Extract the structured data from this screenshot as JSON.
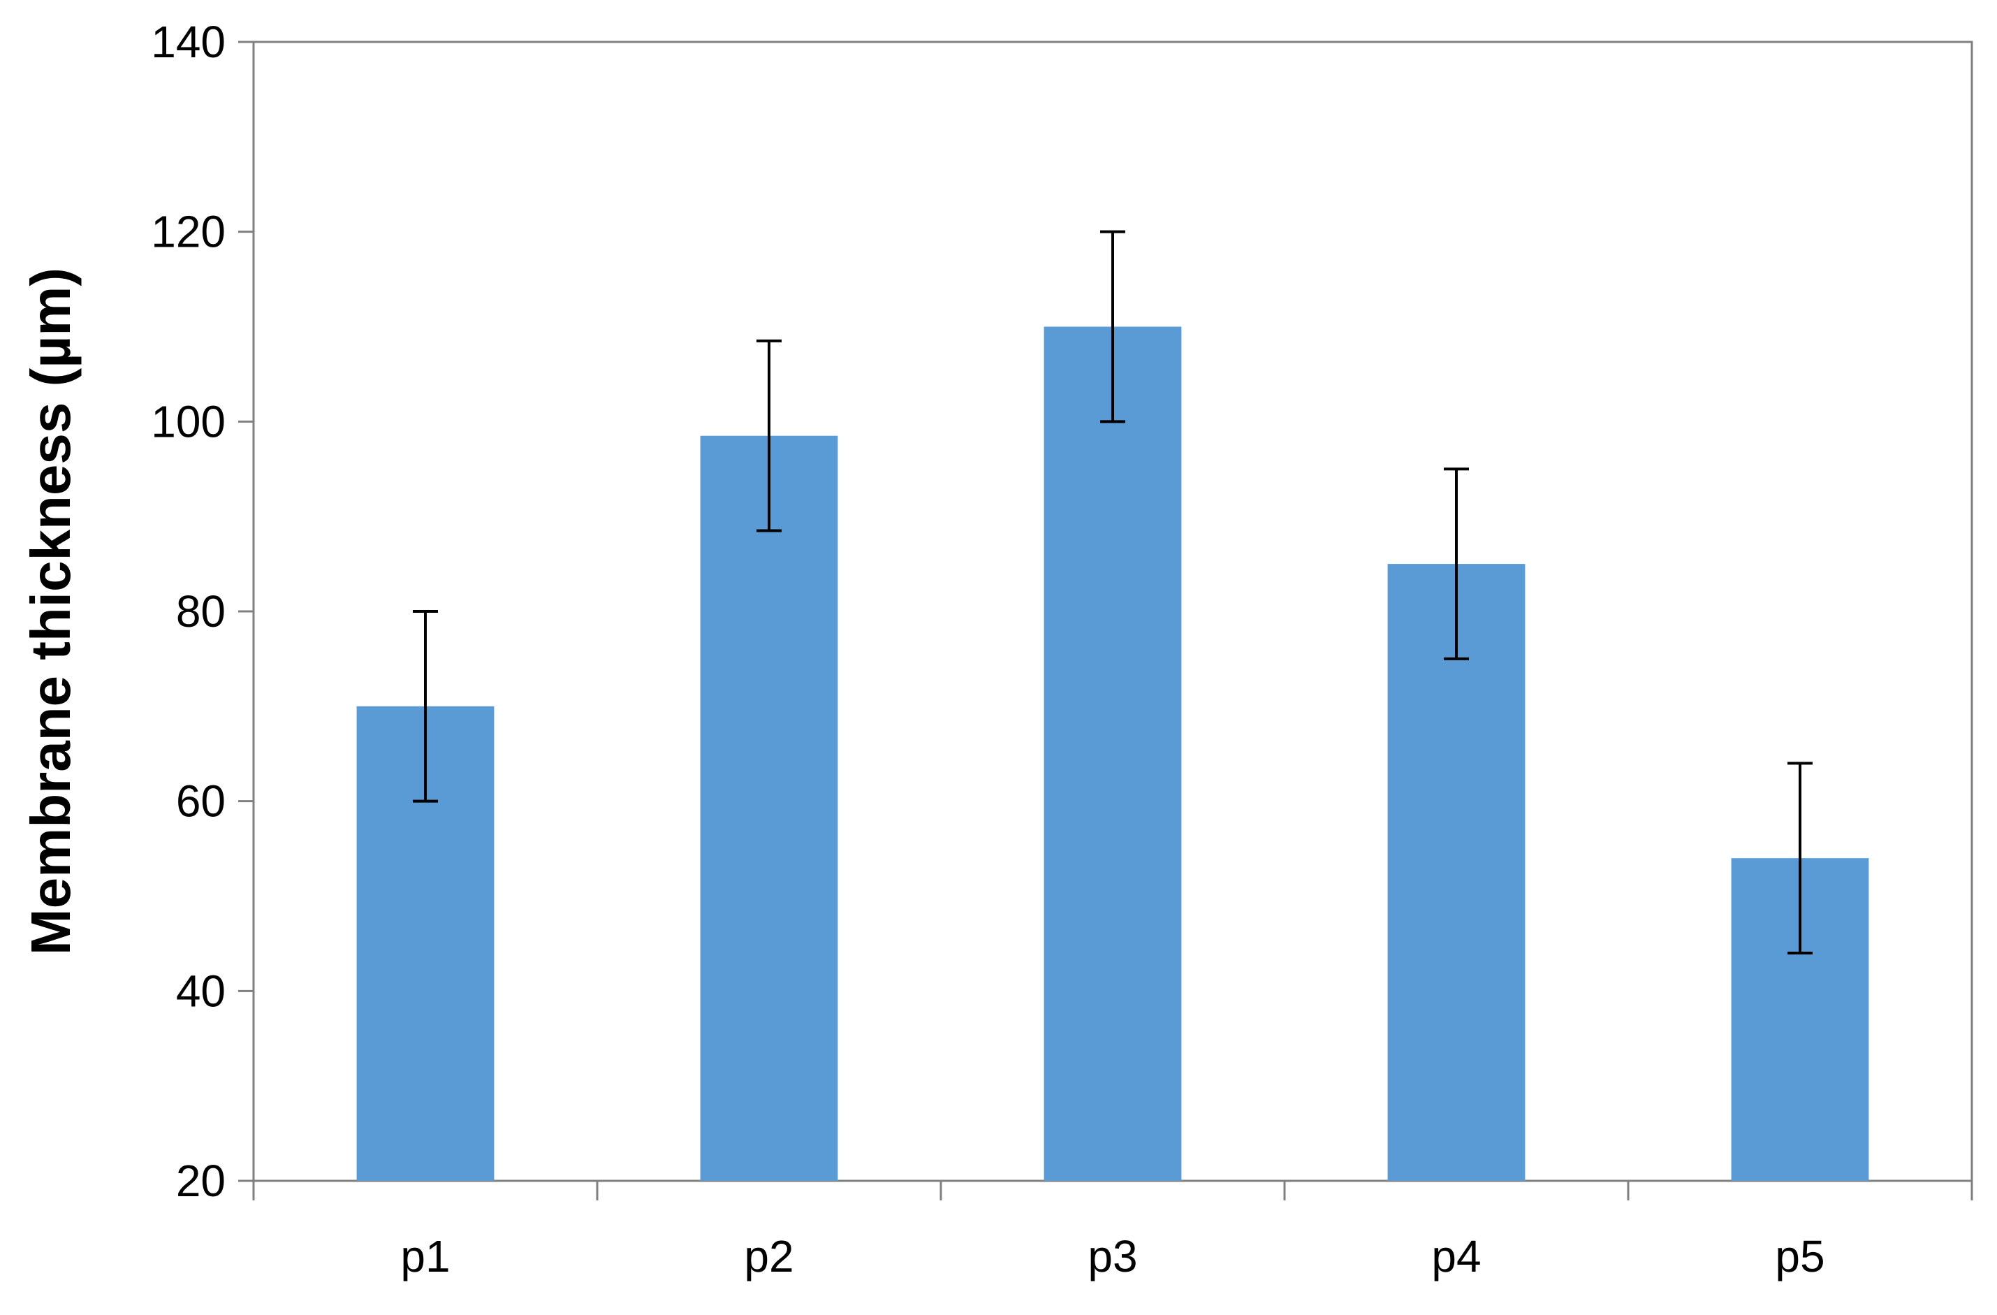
{
  "chart_data": {
    "type": "bar",
    "title": "",
    "xlabel": "",
    "ylabel": "Membrane thickness (µm)",
    "categories": [
      "p1",
      "p2",
      "p3",
      "p4",
      "p5"
    ],
    "series": [
      {
        "values": [
          70,
          98.5,
          110,
          85,
          54
        ],
        "error": [
          10,
          10,
          10,
          10,
          10
        ],
        "color": "#5B9BD5"
      }
    ],
    "ylim": [
      20,
      140
    ],
    "yticks": [
      20,
      40,
      60,
      80,
      100,
      120,
      140
    ],
    "grid": false,
    "legend": "none"
  }
}
